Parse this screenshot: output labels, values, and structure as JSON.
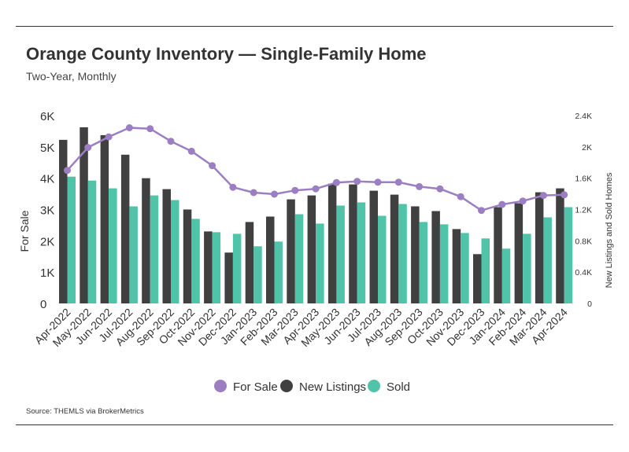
{
  "header": {
    "title": "Orange County Inventory — Single-Family Home",
    "subtitle": "Two-Year, Monthly"
  },
  "footer": {
    "source": "Source:  THEMLS via BrokerMetrics"
  },
  "colors": {
    "for_sale": "#9b7fc2",
    "new_listings": "#404040",
    "sold": "#4fc4a9",
    "text": "#333333"
  },
  "chart_data": {
    "type": "bar",
    "categories": [
      "Apr-2022",
      "May-2022",
      "Jun-2022",
      "Jul-2022",
      "Aug-2022",
      "Sep-2022",
      "Oct-2022",
      "Nov-2022",
      "Dec-2022",
      "Jan-2023",
      "Feb-2023",
      "Mar-2023",
      "Apr-2023",
      "May-2023",
      "Jun-2023",
      "Jul-2023",
      "Aug-2023",
      "Sep-2023",
      "Oct-2023",
      "Nov-2023",
      "Dec-2023",
      "Jan-2024",
      "Feb-2024",
      "Mar-2024",
      "Apr-2024"
    ],
    "series": [
      {
        "name": "For Sale",
        "type": "line",
        "axis": "left",
        "values": [
          4250,
          4980,
          5320,
          5610,
          5580,
          5180,
          4860,
          4400,
          3710,
          3540,
          3490,
          3610,
          3660,
          3860,
          3900,
          3870,
          3870,
          3730,
          3660,
          3410,
          2970,
          3160,
          3270,
          3450,
          3470
        ]
      },
      {
        "name": "New Listings",
        "type": "bar",
        "axis": "right",
        "values": [
          2090,
          2250,
          2150,
          1900,
          1600,
          1460,
          1200,
          920,
          650,
          1040,
          1110,
          1330,
          1380,
          1530,
          1520,
          1440,
          1390,
          1240,
          1180,
          950,
          630,
          1230,
          1280,
          1420,
          1470
        ]
      },
      {
        "name": "Sold",
        "type": "bar",
        "axis": "right",
        "values": [
          1620,
          1570,
          1470,
          1240,
          1380,
          1320,
          1080,
          910,
          890,
          730,
          790,
          1140,
          1020,
          1250,
          1290,
          1120,
          1270,
          1040,
          1010,
          900,
          830,
          700,
          890,
          1100,
          1230
        ]
      }
    ],
    "yaxis_left": {
      "label": "For Sale",
      "ylim": [
        0,
        6000
      ],
      "ticks": [
        0,
        1000,
        2000,
        3000,
        4000,
        5000,
        6000
      ],
      "tick_labels": [
        "0",
        "1K",
        "2K",
        "3K",
        "4K",
        "5K",
        "6K"
      ]
    },
    "yaxis_right": {
      "label": "New Listings and Sold Homes",
      "ylim": [
        0,
        2400
      ],
      "ticks": [
        0,
        400,
        800,
        1200,
        1600,
        2000,
        2400
      ],
      "tick_labels": [
        "0",
        "0.4K",
        "0.8K",
        "1.2K",
        "1.6K",
        "2K",
        "2.4K"
      ]
    },
    "grid": false,
    "legend": {
      "position": "bottom",
      "items": [
        "For Sale",
        "New Listings",
        "Sold"
      ]
    }
  }
}
